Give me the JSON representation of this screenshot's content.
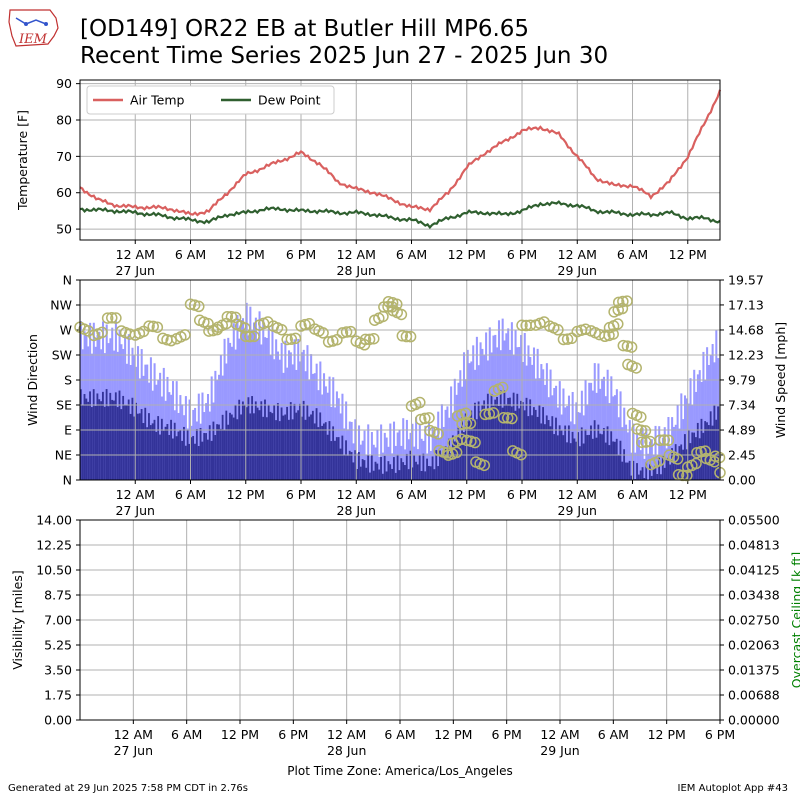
{
  "header": {
    "logo_text": "IEM",
    "title_line1": "[OD149] OR22 EB at Butler Hill MP6.65",
    "title_line2": "Recent Time Series 2025 Jun 27 - 2025 Jun 30"
  },
  "footer": {
    "generated": "Generated at 29 Jun 2025 7:58 PM CDT in 2.76s",
    "app": "IEM Autoplot App #43",
    "timezone": "Plot Time Zone: America/Los_Angeles"
  },
  "colors": {
    "air_temp": "#d9605f",
    "dew_point": "#2f5f2f",
    "gust_bar": "#9999ff",
    "speed_bar": "#333399",
    "direction_marker": "#b4b46e",
    "ceiling_label": "#008000",
    "grid": "#b0b0b0"
  },
  "time_axis": {
    "start_hour": 0,
    "end_hour": 66,
    "tick_hours": [
      6,
      12,
      18,
      24,
      30,
      36,
      42,
      48,
      54,
      60,
      66,
      72
    ],
    "tick_labels": [
      "12 AM",
      "6 AM",
      "12 PM",
      "6 PM",
      "12 AM",
      "6 AM",
      "12 PM",
      "6 PM",
      "12 AM",
      "6 AM",
      "12 PM",
      "6 PM"
    ],
    "day_labels": [
      {
        "hour": 6,
        "text": "27 Jun"
      },
      {
        "hour": 30,
        "text": "28 Jun"
      },
      {
        "hour": 54,
        "text": "29 Jun"
      }
    ]
  },
  "chart_data": [
    {
      "type": "line",
      "ylabel": "Temperature [F]",
      "ylim": [
        47,
        91
      ],
      "yticks": [
        50,
        60,
        70,
        80,
        90
      ],
      "grid": true,
      "legend_placement": "top-left",
      "series": [
        {
          "name": "Air Temp",
          "key": "air_temp",
          "x": [
            0,
            2,
            4,
            6,
            8,
            10,
            12,
            14,
            16,
            18,
            20,
            22,
            24,
            26,
            28,
            30,
            32,
            34,
            36,
            38,
            40,
            42,
            44,
            46,
            48,
            50,
            52,
            54,
            56,
            58,
            60,
            62,
            64,
            66,
            68,
            69.5
          ],
          "y": [
            61.5,
            58,
            56.5,
            56,
            56,
            55.5,
            54,
            55,
            60,
            65,
            67,
            69,
            71,
            68,
            63,
            61,
            60,
            58,
            56,
            55.5,
            60,
            67,
            71,
            74,
            77,
            78,
            76,
            70,
            64,
            62,
            62,
            59,
            63,
            70,
            80,
            88
          ]
        },
        {
          "name": "Dew Point",
          "key": "dew_point",
          "x": [
            0,
            4,
            8,
            12,
            14,
            16,
            18,
            20,
            22,
            24,
            26,
            28,
            30,
            32,
            34,
            36,
            38,
            40,
            42,
            44,
            46,
            48,
            50,
            52,
            54,
            56,
            58,
            60,
            62,
            64,
            66,
            68,
            69.5
          ],
          "y": [
            55.5,
            55,
            54,
            52.5,
            52,
            54,
            54.5,
            55.5,
            55.5,
            55,
            55,
            54.5,
            54.5,
            54,
            53,
            52.5,
            51,
            53,
            54.5,
            54.5,
            54,
            55,
            57,
            57,
            56.5,
            55,
            54.5,
            54,
            54,
            54.5,
            53,
            53,
            52
          ]
        }
      ]
    },
    {
      "type": "bar",
      "ylabel": "Wind Direction",
      "ylabel_right": "Wind Speed [mph]",
      "grid": true,
      "direction_ticks": [
        "N",
        "NE",
        "E",
        "SE",
        "S",
        "SW",
        "W",
        "NW",
        "N"
      ],
      "direction_degrees": [
        0,
        45,
        90,
        135,
        180,
        225,
        270,
        315,
        360
      ],
      "speed_ylim": [
        0,
        19.57
      ],
      "speed_ticks": [
        "0.00",
        "2.45",
        "4.89",
        "7.34",
        "9.79",
        "12.23",
        "14.68",
        "17.13",
        "19.57"
      ],
      "series": [
        {
          "name": "Gust",
          "key": "gust",
          "x": [
            0,
            2,
            4,
            6,
            8,
            10,
            12,
            14,
            16,
            18,
            20,
            22,
            24,
            26,
            28,
            30,
            32,
            34,
            36,
            38,
            40,
            42,
            44,
            46,
            48,
            50,
            52,
            54,
            56,
            58,
            60,
            62,
            64,
            66,
            68,
            69.5
          ],
          "y": [
            14,
            14.5,
            15,
            13,
            11,
            9,
            6,
            7,
            12,
            15,
            14,
            12,
            13,
            11,
            9,
            5,
            4,
            4,
            4,
            3,
            6,
            11,
            13,
            15,
            14,
            12,
            9,
            7,
            10,
            8,
            3,
            2.5,
            4,
            8,
            12,
            14.5
          ]
        },
        {
          "name": "Speed",
          "key": "speed",
          "x": [
            0,
            2,
            4,
            6,
            8,
            10,
            12,
            14,
            16,
            18,
            20,
            22,
            24,
            26,
            28,
            30,
            32,
            34,
            36,
            38,
            40,
            42,
            44,
            46,
            48,
            50,
            52,
            54,
            56,
            58,
            60,
            62,
            64,
            66,
            68,
            69.5
          ],
          "y": [
            8,
            8,
            8,
            7,
            5.5,
            5,
            4,
            4.5,
            6,
            7.5,
            7,
            6.5,
            7,
            6,
            4,
            2,
            1.5,
            1.5,
            2,
            1.5,
            3,
            6,
            7.5,
            8,
            7.5,
            6.5,
            5,
            4,
            5,
            4,
            1,
            0.8,
            2,
            4,
            5.5,
            7
          ]
        },
        {
          "name": "Direction",
          "key": "direction",
          "x": [
            0,
            1.5,
            3,
            4.5,
            6,
            7.5,
            9,
            10.5,
            12,
            13,
            14,
            15,
            16,
            17,
            18,
            19.5,
            21,
            22.5,
            24,
            25.5,
            27,
            28.5,
            30,
            31,
            32,
            33,
            33.5,
            34,
            35,
            36,
            37,
            38,
            39,
            40,
            40.5,
            41,
            41.5,
            42,
            43,
            44,
            45,
            46,
            47,
            48,
            49.5,
            51,
            52.5,
            54,
            55.5,
            57,
            57.5,
            58,
            58.5,
            59,
            59.5,
            60,
            60.5,
            61,
            62,
            63,
            64,
            65,
            66,
            67,
            68,
            69,
            69.5
          ],
          "y": [
            275,
            270,
            280,
            272,
            268,
            265,
            262,
            258,
            305,
            290,
            280,
            275,
            282,
            278,
            270,
            275,
            270,
            265,
            270,
            268,
            260,
            255,
            250,
            265,
            290,
            300,
            310,
            300,
            270,
            140,
            100,
            80,
            60,
            55,
            70,
            110,
            90,
            60,
            35,
            130,
            160,
            100,
            50,
            290,
            275,
            270,
            265,
            260,
            265,
            270,
            280,
            300,
            310,
            230,
            200,
            120,
            100,
            80,
            30,
            60,
            40,
            20,
            30,
            40,
            30,
            50,
            25
          ]
        }
      ]
    },
    {
      "type": "line",
      "ylabel": "Visibility [miles]",
      "ylabel_right": "Overcast Ceiling [k ft]",
      "grid": true,
      "ylim": [
        0,
        14
      ],
      "yticks": [
        "0.00",
        "1.75",
        "3.50",
        "5.25",
        "7.00",
        "8.75",
        "10.50",
        "12.25",
        "14.00"
      ],
      "yticks_right": [
        "0.00000",
        "0.00688",
        "0.01375",
        "0.02063",
        "0.02750",
        "0.03438",
        "0.04125",
        "0.04813",
        "0.05500"
      ],
      "series": []
    }
  ]
}
